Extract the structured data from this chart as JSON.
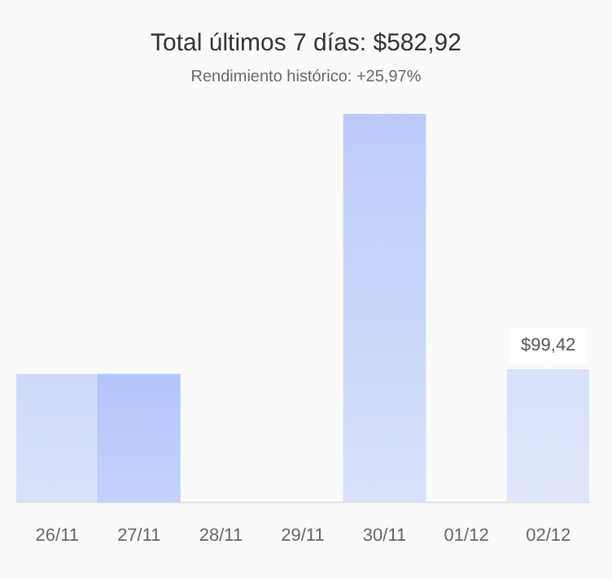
{
  "chart_data": {
    "type": "bar",
    "title": "Total últimos 7 días: $582,92",
    "subtitle": "Rendimiento histórico: +25,97%",
    "categories": [
      "26/11",
      "27/11",
      "28/11",
      "29/11",
      "30/11",
      "01/12",
      "02/12"
    ],
    "values": [
      96,
      96,
      0,
      0,
      291.5,
      0,
      99.42
    ],
    "colors": [
      "#bccbfa",
      "#94aefc",
      "#bccbfa",
      "#bccbfa",
      "#bccbfa",
      "#bccbfa",
      "#c9d5fb"
    ],
    "value_labels": [
      null,
      null,
      null,
      null,
      null,
      null,
      "$99,42"
    ],
    "grid": false,
    "legend": false
  }
}
